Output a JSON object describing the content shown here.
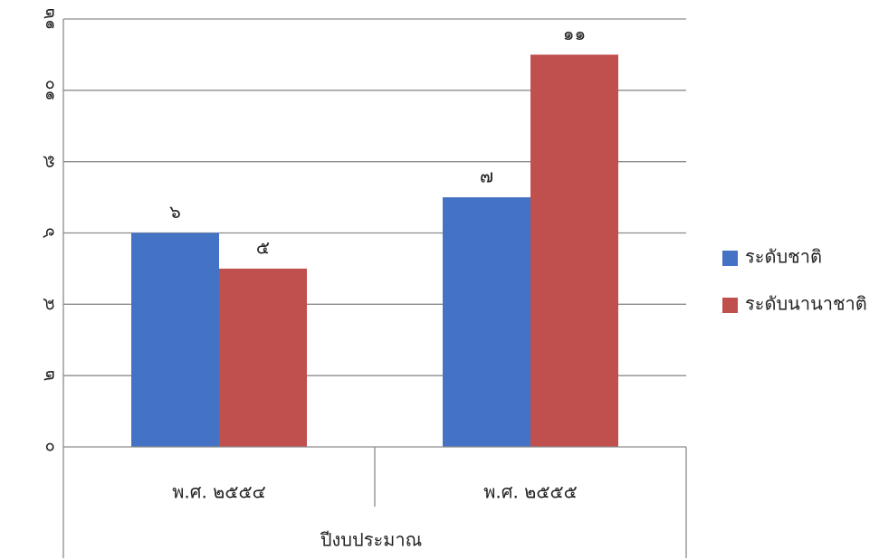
{
  "chart_data": {
    "type": "bar",
    "categories": [
      "พ.ศ. ๒๕๕๔",
      "พ.ศ. ๒๕๕๕"
    ],
    "series": [
      {
        "name": "ระดับชาติ",
        "values": [
          6,
          7
        ],
        "value_labels": [
          "๖",
          "๗"
        ],
        "color": "#4472C4"
      },
      {
        "name": "ระดับนานาชาติ",
        "values": [
          5,
          11
        ],
        "value_labels": [
          "๕",
          "๑๑"
        ],
        "color": "#C0504D"
      }
    ],
    "ylim": [
      0,
      12
    ],
    "y_ticks": [
      0,
      2,
      4,
      6,
      8,
      10,
      12
    ],
    "y_tick_labels": [
      "๐",
      "๒",
      "๔",
      "๖",
      "๘",
      "๑๐",
      "๑๒"
    ],
    "xlabel": "ปีงบประมาณ",
    "ylabel": "",
    "title": "",
    "grid": true,
    "legend_position": "right"
  }
}
